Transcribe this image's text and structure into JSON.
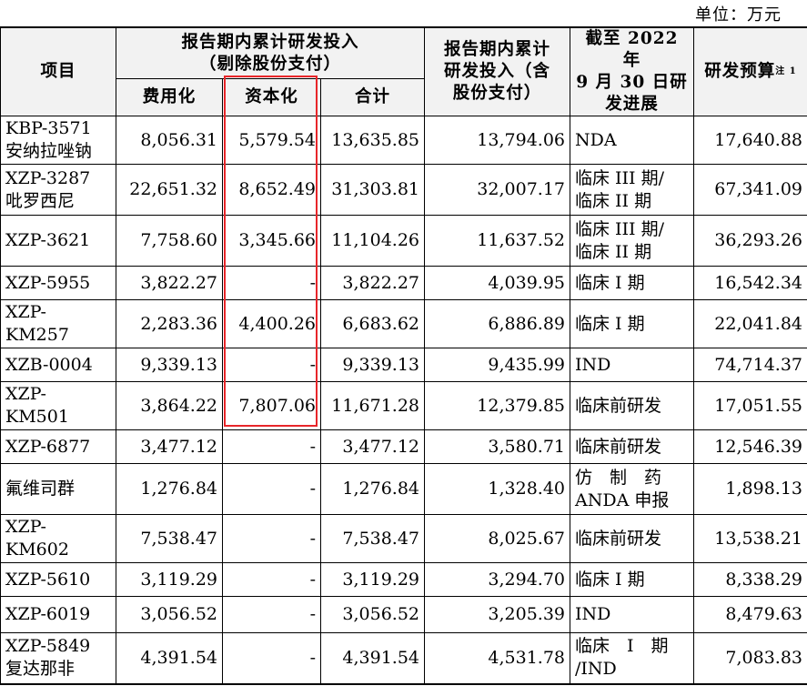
{
  "unit_label": "单位：万元",
  "headers": {
    "project": "项目",
    "period_excl_line1": "报告期内累计研发投入",
    "period_excl_line2": "（剔除股份支付）",
    "expensed": "费用化",
    "capitalized": "资本化",
    "total": "合计",
    "period_incl": [
      "报告期内累计",
      "研发投入（含",
      "股份支付）"
    ],
    "progress": [
      "截至 2022 年",
      "9 月 30 日研",
      "发进展"
    ],
    "budget": "研发预算",
    "budget_note": "注 1"
  },
  "rows": [
    {
      "name": [
        "KBP-3571",
        "安纳拉唑钠"
      ],
      "expensed": "8,056.31",
      "capitalized": "5,579.54",
      "total": "13,635.85",
      "incl_share": "13,794.06",
      "progress": [
        "NDA"
      ],
      "budget": "17,640.88"
    },
    {
      "name": [
        "XZP-3287",
        "吡罗西尼"
      ],
      "expensed": "22,651.32",
      "capitalized": "8,652.49",
      "total": "31,303.81",
      "incl_share": "32,007.17",
      "progress": [
        "临床 III 期/",
        "临床 II 期"
      ],
      "budget": "67,341.09"
    },
    {
      "name": [
        "XZP-3621"
      ],
      "expensed": "7,758.60",
      "capitalized": "3,345.66",
      "total": "11,104.26",
      "incl_share": "11,637.52",
      "progress": [
        "临床 III 期/",
        "临床 II 期"
      ],
      "budget": "36,293.26"
    },
    {
      "name": [
        "XZP-5955"
      ],
      "expensed": "3,822.27",
      "capitalized": "-",
      "total": "3,822.27",
      "incl_share": "4,039.95",
      "progress": [
        "临床 I 期"
      ],
      "budget": "16,542.34"
    },
    {
      "name": [
        "XZP-",
        "KM257"
      ],
      "expensed": "2,283.36",
      "capitalized": "4,400.26",
      "total": "6,683.62",
      "incl_share": "6,886.89",
      "progress": [
        "临床 I 期"
      ],
      "budget": "22,041.84"
    },
    {
      "name": [
        "XZB-0004"
      ],
      "expensed": "9,339.13",
      "capitalized": "-",
      "total": "9,339.13",
      "incl_share": "9,435.99",
      "progress": [
        "IND"
      ],
      "budget": "74,714.37"
    },
    {
      "name": [
        "XZP-",
        "KM501"
      ],
      "expensed": "3,864.22",
      "capitalized": "7,807.06",
      "total": "11,671.28",
      "incl_share": "12,379.85",
      "progress": [
        "临床前研发"
      ],
      "budget": "17,051.55"
    },
    {
      "name": [
        "XZP-6877"
      ],
      "expensed": "3,477.12",
      "capitalized": "-",
      "total": "3,477.12",
      "incl_share": "3,580.71",
      "progress": [
        "临床前研发"
      ],
      "budget": "12,546.39"
    },
    {
      "name": [
        "氟维司群"
      ],
      "expensed": "1,276.84",
      "capitalized": "-",
      "total": "1,276.84",
      "incl_share": "1,328.40",
      "progress": [
        "仿　制　药",
        "ANDA 申报"
      ],
      "budget": "1,898.13"
    },
    {
      "name": [
        "XZP-",
        "KM602"
      ],
      "expensed": "7,538.47",
      "capitalized": "-",
      "total": "7,538.47",
      "incl_share": "8,025.67",
      "progress": [
        "临床前研发"
      ],
      "budget": "13,538.21"
    },
    {
      "name": [
        "XZP-5610"
      ],
      "expensed": "3,119.29",
      "capitalized": "-",
      "total": "3,119.29",
      "incl_share": "3,294.70",
      "progress": [
        "临床 I 期"
      ],
      "budget": "8,338.29"
    },
    {
      "name": [
        "XZP-6019"
      ],
      "expensed": "3,056.52",
      "capitalized": "-",
      "total": "3,056.52",
      "incl_share": "3,205.39",
      "progress": [
        "IND"
      ],
      "budget": "8,479.63"
    },
    {
      "name": [
        "XZP-5849",
        "复达那非"
      ],
      "expensed": "4,391.54",
      "capitalized": "-",
      "total": "4,391.54",
      "incl_share": "4,531.78",
      "progress": [
        "临床　I　期",
        "/IND"
      ],
      "budget": "7,083.83"
    }
  ],
  "highlight_color": "#e8262a"
}
